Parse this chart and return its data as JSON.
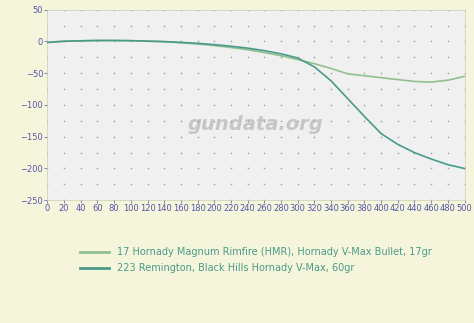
{
  "background_color": "#f5f5dc",
  "plot_bg_color": "#f0f0f0",
  "grid_dot_color": "#aaaaaa",
  "xlim": [
    0,
    500
  ],
  "ylim": [
    -250,
    50
  ],
  "xticks": [
    0,
    20,
    40,
    60,
    80,
    100,
    120,
    140,
    160,
    180,
    200,
    220,
    240,
    260,
    280,
    300,
    320,
    340,
    360,
    380,
    400,
    420,
    440,
    460,
    480,
    500
  ],
  "yticks": [
    -250,
    -200,
    -150,
    -100,
    -50,
    0,
    50
  ],
  "grid_y_rows": [
    -250,
    -225,
    -200,
    -175,
    -150,
    -125,
    -100,
    -75,
    -50,
    -25,
    0,
    25,
    50
  ],
  "hmr_x": [
    0,
    20,
    40,
    60,
    80,
    100,
    120,
    140,
    160,
    180,
    200,
    220,
    240,
    260,
    280,
    300,
    320,
    340,
    360,
    380,
    400,
    420,
    440,
    460,
    480,
    500
  ],
  "hmr_y": [
    -1.5,
    0.3,
    1.0,
    1.5,
    1.5,
    1.2,
    0.5,
    -0.5,
    -2.0,
    -4.0,
    -6.5,
    -9.5,
    -13.0,
    -17.5,
    -22.5,
    -28.5,
    -35.0,
    -42.5,
    -51.0,
    -54.0,
    -57.0,
    -60.0,
    -63.0,
    -64.0,
    -61.0,
    -55.0
  ],
  "r223_x": [
    0,
    20,
    40,
    60,
    80,
    100,
    120,
    140,
    160,
    180,
    200,
    220,
    240,
    260,
    280,
    300,
    320,
    340,
    360,
    380,
    400,
    420,
    440,
    460,
    480,
    500
  ],
  "r223_y": [
    -1.5,
    0.3,
    1.0,
    1.5,
    1.5,
    1.2,
    0.5,
    -0.2,
    -1.5,
    -3.0,
    -5.0,
    -7.5,
    -10.5,
    -14.5,
    -19.5,
    -26.0,
    -40.0,
    -62.0,
    -90.0,
    -118.0,
    -145.0,
    -162.0,
    -175.0,
    -185.0,
    -194.0,
    -200.0
  ],
  "hmr_color": "#90c090",
  "r223_color": "#4a9a8a",
  "hmr_label": "17 Hornady Magnum Rimfire (HMR), Hornady V-Max Bullet, 17gr",
  "r223_label": "223 Remington, Black Hills Hornady V-Max, 60gr",
  "watermark": "gundata.org",
  "tick_color": "#5555aa",
  "tick_fontsize": 6.0,
  "legend_fontsize": 7.0,
  "spine_color": "#ccccbb"
}
